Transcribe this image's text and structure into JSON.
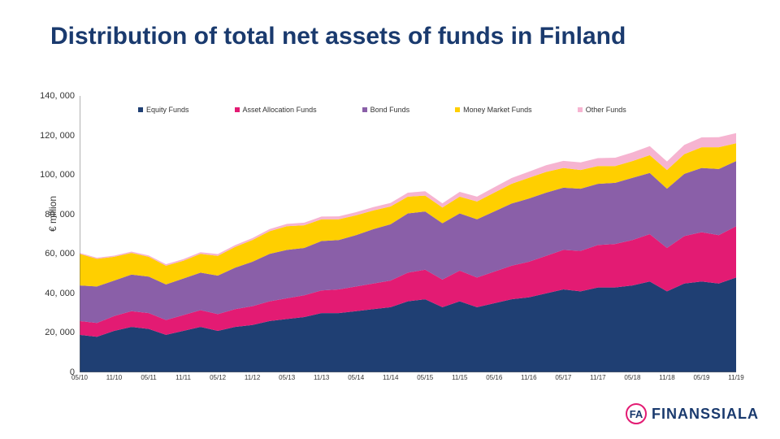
{
  "title": "Distribution of total net assets of funds in Finland",
  "y_axis_label": "€ million",
  "chart": {
    "type": "area-stacked",
    "background_color": "#ffffff",
    "ylim": [
      0,
      140000
    ],
    "ytick_step": 20000,
    "y_tick_labels": [
      "0",
      "20, 000",
      "40, 000",
      "60, 000",
      "80, 000",
      "100, 000",
      "120, 000",
      "140, 000"
    ],
    "x_labels": [
      "05/10",
      "11/10",
      "05/11",
      "11/11",
      "05/12",
      "11/12",
      "05/13",
      "11/13",
      "05/14",
      "11/14",
      "05/15",
      "11/15",
      "05/16",
      "11/16",
      "05/17",
      "11/17",
      "05/18",
      "11/18",
      "05/19",
      "11/19"
    ],
    "legend": [
      {
        "label": "Equity Funds",
        "color": "#1f3f73"
      },
      {
        "label": "Asset Allocation Funds",
        "color": "#e31b73"
      },
      {
        "label": "Bond Funds",
        "color": "#8a5fa8"
      },
      {
        "label": "Money Market Funds",
        "color": "#ffcf00"
      },
      {
        "label": "Other Funds",
        "color": "#f6b4d1"
      }
    ],
    "series_order": [
      "equity",
      "asset_alloc",
      "bond",
      "money_market",
      "other"
    ],
    "series_colors": {
      "equity": "#1f3f73",
      "asset_alloc": "#e31b73",
      "bond": "#8a5fa8",
      "money_market": "#ffcf00",
      "other": "#f6b4d1"
    },
    "x": [
      "05/10",
      "08/10",
      "11/10",
      "02/11",
      "05/11",
      "08/11",
      "11/11",
      "02/12",
      "05/12",
      "08/12",
      "11/12",
      "02/13",
      "05/13",
      "08/13",
      "11/13",
      "02/14",
      "05/14",
      "08/14",
      "11/14",
      "02/15",
      "05/15",
      "08/15",
      "11/15",
      "02/16",
      "05/16",
      "08/16",
      "11/16",
      "02/17",
      "05/17",
      "08/17",
      "11/17",
      "02/18",
      "05/18",
      "08/18",
      "11/18",
      "02/19",
      "05/19",
      "08/19",
      "11/19"
    ],
    "values": {
      "equity": [
        19000,
        18000,
        21000,
        23000,
        22000,
        19000,
        21000,
        23000,
        21000,
        23000,
        24000,
        26000,
        27000,
        28000,
        30000,
        30000,
        31000,
        32000,
        33000,
        36000,
        37000,
        33000,
        36000,
        33000,
        35000,
        37000,
        38000,
        40000,
        42000,
        41000,
        43000,
        43000,
        44000,
        46000,
        41000,
        45000,
        46000,
        45000,
        48000
      ],
      "asset_alloc": [
        7000,
        7000,
        7500,
        8000,
        8000,
        7500,
        8000,
        8500,
        8500,
        9000,
        9500,
        10000,
        10500,
        11000,
        11500,
        12000,
        12500,
        13000,
        13500,
        14500,
        15000,
        14000,
        15500,
        15000,
        16000,
        17000,
        18000,
        19000,
        20000,
        20500,
        21500,
        22000,
        23000,
        24000,
        22000,
        24000,
        25000,
        24500,
        26000
      ],
      "bond": [
        18000,
        18500,
        18000,
        18500,
        18500,
        18000,
        18500,
        19000,
        19500,
        21000,
        22500,
        24000,
        24500,
        24000,
        25000,
        25000,
        26000,
        27500,
        28500,
        30000,
        29500,
        28500,
        29000,
        29500,
        30500,
        31500,
        32000,
        32000,
        31500,
        31500,
        31000,
        31000,
        31500,
        31000,
        30000,
        31500,
        32500,
        33500,
        33000
      ],
      "money_market": [
        16000,
        14000,
        12000,
        11000,
        10000,
        9500,
        9000,
        9500,
        10000,
        10500,
        11000,
        11500,
        12000,
        11500,
        11000,
        10500,
        10000,
        9500,
        9000,
        8500,
        8000,
        8000,
        8500,
        9000,
        9500,
        10000,
        10500,
        10500,
        10000,
        9500,
        9000,
        8500,
        8500,
        9000,
        9500,
        10000,
        10500,
        11000,
        9000
      ],
      "other": [
        500,
        550,
        600,
        650,
        700,
        750,
        800,
        850,
        900,
        950,
        1000,
        1100,
        1200,
        1300,
        1400,
        1500,
        1600,
        1700,
        1800,
        2000,
        2200,
        2100,
        2400,
        2500,
        2700,
        2900,
        3100,
        3400,
        3600,
        3800,
        4000,
        4200,
        4400,
        4600,
        4300,
        4700,
        5000,
        5100,
        5200
      ]
    },
    "axis_color": "#666666",
    "label_font_size": 11,
    "x_label_font_size": 8,
    "title_font_size": 30,
    "title_color": "#1a3a6e"
  },
  "brand": {
    "badge_text": "FA",
    "name": "FINANSSIALA",
    "badge_border_color": "#e31b73",
    "text_color": "#1a3a6e"
  }
}
